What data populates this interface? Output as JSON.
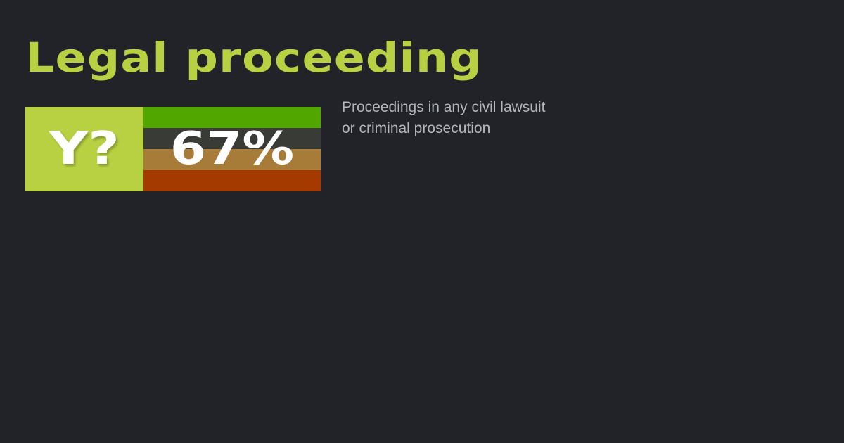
{
  "title": "Legal proceeding",
  "badge": {
    "label": "Y?",
    "percent": "67%",
    "colors": {
      "label_bg": "#b8d143",
      "bands": [
        "#52a600",
        "#393c36",
        "#a67c38",
        "#a53a00"
      ]
    }
  },
  "description": {
    "line1": "Proceedings in any civil lawsuit",
    "line2": "or criminal prosecution"
  },
  "colors": {
    "background": "#212328",
    "accent": "#b8d143",
    "text": "#b3b6bb"
  }
}
